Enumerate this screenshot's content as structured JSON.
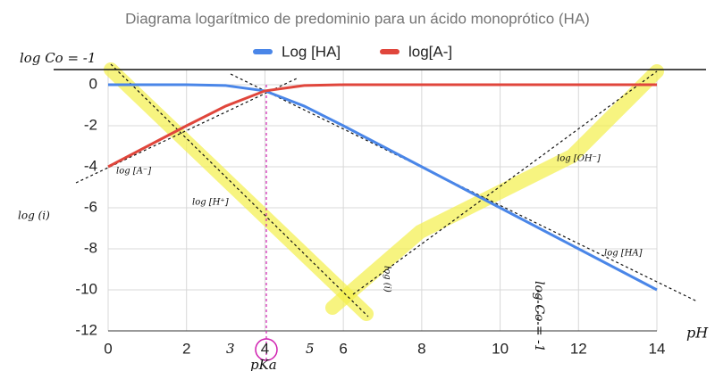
{
  "chart_data": {
    "type": "line",
    "title": "Diagrama logarítmico de predominio para un ácido monoprótico (HA)",
    "x": [
      0,
      1,
      2,
      3,
      4,
      5,
      6,
      7,
      8,
      9,
      10,
      11,
      12,
      13,
      14
    ],
    "series": [
      {
        "name": "Log [HA]",
        "color": "#4a86e8",
        "values": [
          0,
          0,
          0,
          -0.04,
          -0.3,
          -1.04,
          -2,
          -3,
          -4,
          -5,
          -6,
          -7,
          -8,
          -9,
          -10
        ]
      },
      {
        "name": "log[A-]",
        "color": "#e0463c",
        "values": [
          -4,
          -3,
          -2,
          -1.04,
          -0.3,
          -0.04,
          0,
          0,
          0,
          0,
          0,
          0,
          0,
          0,
          0
        ]
      }
    ],
    "xlim": [
      0,
      14
    ],
    "xticks": [
      0,
      2,
      4,
      6,
      8,
      10,
      12,
      14
    ],
    "ylim": [
      -12,
      0.7
    ],
    "yticks": [
      0,
      -2,
      -4,
      -6,
      -8,
      -10,
      -12
    ],
    "grid": true,
    "legend": "top",
    "annotations": [
      "log Co = -1",
      "log [A⁻]",
      "log [H⁺]",
      "log (i)",
      "log [OH⁻]",
      "log [HA]",
      "log Co = -1",
      "pH",
      "pKa",
      "3",
      "5",
      "log (i)"
    ]
  }
}
